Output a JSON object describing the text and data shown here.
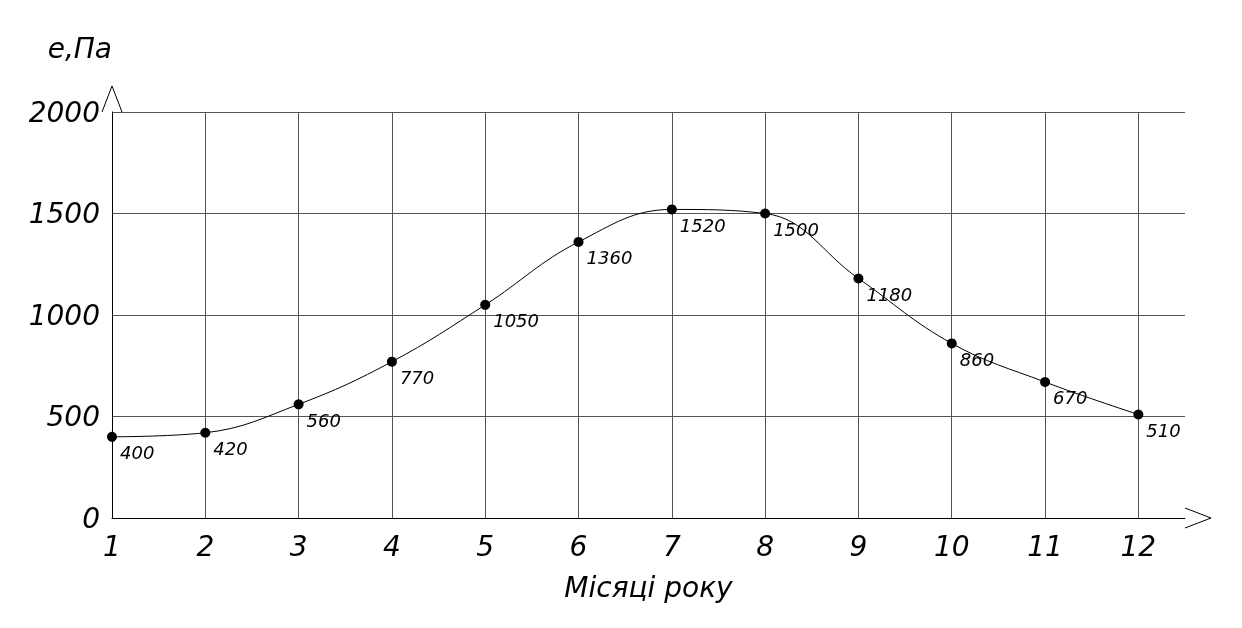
{
  "chart_data": {
    "type": "line",
    "xlabel": "Місяці року",
    "ylabel": "e,Па",
    "x": [
      1,
      2,
      3,
      4,
      5,
      6,
      7,
      8,
      9,
      10,
      11,
      12
    ],
    "series": [
      {
        "color": "#000000",
        "values": [
          400,
          420,
          560,
          770,
          1050,
          1360,
          1520,
          1500,
          1180,
          860,
          670,
          510
        ]
      }
    ],
    "xlim": [
      1,
      12.5
    ],
    "xticks": [
      1,
      2,
      3,
      4,
      5,
      6,
      7,
      8,
      9,
      10,
      11,
      12
    ],
    "ylim": [
      0,
      2000
    ],
    "yticks": [
      0,
      500,
      1000,
      1500,
      2000
    ],
    "grid": true,
    "marker": "circle",
    "line_style": "solid",
    "data_labels": true
  }
}
